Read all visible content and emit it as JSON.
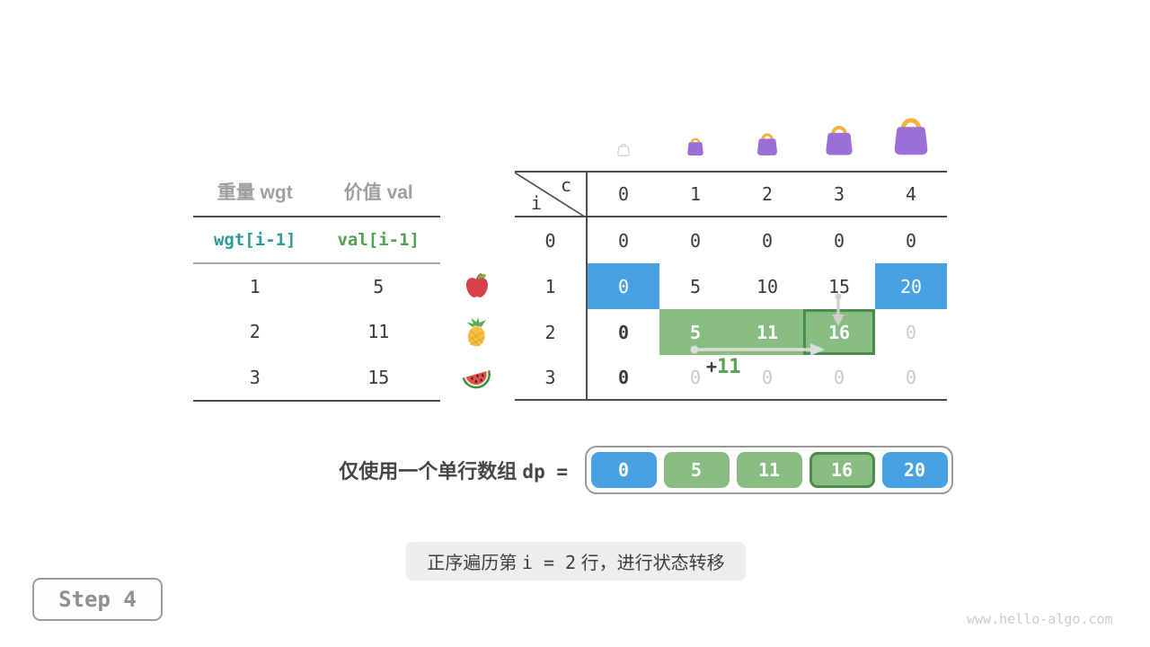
{
  "colors": {
    "blue": "#47a1e3",
    "green": "#87bc83",
    "green_dark": "#4b8b4b",
    "teal": "#2f9a9a",
    "val_green": "#55a055",
    "line_dark": "#4c4c4c",
    "muted_text": "#c9c9c9",
    "bag_purple": "#9c6fd6",
    "bag_handle": "#f2b33d"
  },
  "items_table": {
    "col_headers": [
      "重量 wgt",
      "价值 val"
    ],
    "index_row": [
      "wgt[i-1]",
      "val[i-1]"
    ],
    "rows": [
      {
        "wgt": "1",
        "val": "5",
        "fruit": "apple-icon"
      },
      {
        "wgt": "2",
        "val": "11",
        "fruit": "pineapple-icon"
      },
      {
        "wgt": "3",
        "val": "15",
        "fruit": "watermelon-icon"
      }
    ]
  },
  "dp_table": {
    "corner": {
      "row_var": "i",
      "col_var": "c"
    },
    "col_headers": [
      "0",
      "1",
      "2",
      "3",
      "4"
    ],
    "bags": [
      {
        "icon": "bag-icon",
        "variant": "empty",
        "size": 0
      },
      {
        "icon": "bag-icon",
        "variant": "purple",
        "size": 1
      },
      {
        "icon": "bag-icon",
        "variant": "purple",
        "size": 2
      },
      {
        "icon": "bag-icon",
        "variant": "purple",
        "size": 3
      },
      {
        "icon": "bag-icon",
        "variant": "purple",
        "size": 4
      }
    ],
    "rows": [
      {
        "label": "0",
        "cells": [
          {
            "v": "0"
          },
          {
            "v": "0"
          },
          {
            "v": "0"
          },
          {
            "v": "0"
          },
          {
            "v": "0"
          }
        ]
      },
      {
        "label": "1",
        "cells": [
          {
            "v": "0",
            "bg": "blue"
          },
          {
            "v": "5"
          },
          {
            "v": "10"
          },
          {
            "v": "15"
          },
          {
            "v": "20",
            "bg": "blue"
          }
        ]
      },
      {
        "label": "2",
        "cells": [
          {
            "v": "0",
            "bold": true
          },
          {
            "v": "5",
            "bg": "green"
          },
          {
            "v": "11",
            "bg": "green"
          },
          {
            "v": "16",
            "bg": "green",
            "outlined": true
          },
          {
            "v": "0",
            "muted": true
          }
        ]
      },
      {
        "label": "3",
        "cells": [
          {
            "v": "0",
            "bold": true
          },
          {
            "v": "0",
            "muted": true
          },
          {
            "v": "0",
            "muted": true
          },
          {
            "v": "0",
            "muted": true
          },
          {
            "v": "0",
            "muted": true
          }
        ]
      }
    ],
    "annotation": {
      "plus": "+",
      "value": "11"
    },
    "arrows": [
      "transition-right-arrow",
      "transition-down-arrow"
    ]
  },
  "dp_array": {
    "label_text": "仅使用一个单行数组",
    "label_code": "dp =",
    "cells": [
      {
        "v": "0",
        "bg": "blue"
      },
      {
        "v": "5",
        "bg": "green"
      },
      {
        "v": "11",
        "bg": "green"
      },
      {
        "v": "16",
        "bg": "green",
        "outlined": true
      },
      {
        "v": "20",
        "bg": "blue"
      }
    ]
  },
  "caption": {
    "prefix": "正序遍历第",
    "code": "i = 2",
    "suffix": "行，进行状态转移"
  },
  "step_badge": "Step 4",
  "watermark": "www.hello-algo.com"
}
